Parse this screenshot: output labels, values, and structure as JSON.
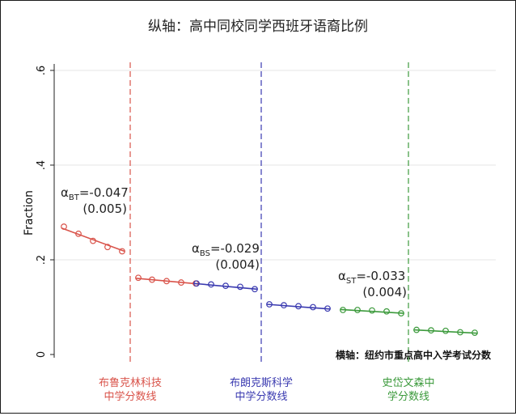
{
  "chart_data": {
    "type": "scatter",
    "title": "纵轴：高中同校同学西班牙语裔比例",
    "ylabel": "Fraction",
    "ylim": [
      0,
      0.6
    ],
    "yticks": [
      {
        "value": 0,
        "label": "0"
      },
      {
        "value": 0.2,
        "label": ".2"
      },
      {
        "value": 0.4,
        "label": ".4"
      },
      {
        "value": 0.6,
        "label": ".6"
      }
    ],
    "grid": true,
    "xaxis_note": "横轴：纽约市重点高中入学考试分数",
    "cutoffs": [
      {
        "name": "布鲁克林科技中学分数线",
        "label_lines": [
          "布鲁克林科技",
          "中学分数线"
        ],
        "color": "#d9534a",
        "position": 160
      },
      {
        "name": "布朗克斯科学中学分数线",
        "label_lines": [
          "布朗克斯科学",
          "中学分数线"
        ],
        "color": "#3a3ab0",
        "position": 322
      },
      {
        "name": "史岱文森中学分数线",
        "label_lines": [
          "史岱文森中",
          "学分数线"
        ],
        "color": "#3c9a3c",
        "position": 504
      }
    ],
    "series": [
      {
        "color": "#d9534a",
        "x": [
          78,
          96,
          114,
          132,
          150
        ],
        "y": [
          0.27,
          0.255,
          0.24,
          0.227,
          0.218
        ],
        "fit": [
          0.267,
          0.218
        ]
      },
      {
        "color": "#d9534a",
        "x": [
          170,
          187,
          205,
          223,
          241
        ],
        "y": [
          0.162,
          0.158,
          0.155,
          0.152,
          0.15
        ],
        "fit": [
          0.161,
          0.149
        ]
      },
      {
        "color": "#3a3ab0",
        "x": [
          242,
          260,
          278,
          296,
          314
        ],
        "y": [
          0.15,
          0.148,
          0.145,
          0.143,
          0.138
        ],
        "fit": [
          0.15,
          0.138
        ]
      },
      {
        "color": "#3a3ab0",
        "x": [
          332,
          350,
          368,
          386,
          404
        ],
        "y": [
          0.106,
          0.104,
          0.102,
          0.1,
          0.097
        ],
        "fit": [
          0.106,
          0.096
        ]
      },
      {
        "color": "#3c9a3c",
        "x": [
          423,
          441,
          459,
          477,
          495
        ],
        "y": [
          0.094,
          0.094,
          0.093,
          0.091,
          0.087
        ],
        "fit": [
          0.095,
          0.087
        ]
      },
      {
        "color": "#3c9a3c",
        "x": [
          514,
          532,
          550,
          568,
          586
        ],
        "y": [
          0.052,
          0.051,
          0.05,
          0.047,
          0.046
        ],
        "fit": [
          0.052,
          0.045
        ]
      }
    ],
    "annotations": [
      {
        "sub": "BT",
        "coef": "=-0.047",
        "se": "(0.005)"
      },
      {
        "sub": "BS",
        "coef": "=-0.029",
        "se": "(0.004)"
      },
      {
        "sub": "ST",
        "coef": "=-0.033",
        "se": "(0.004)"
      }
    ]
  }
}
